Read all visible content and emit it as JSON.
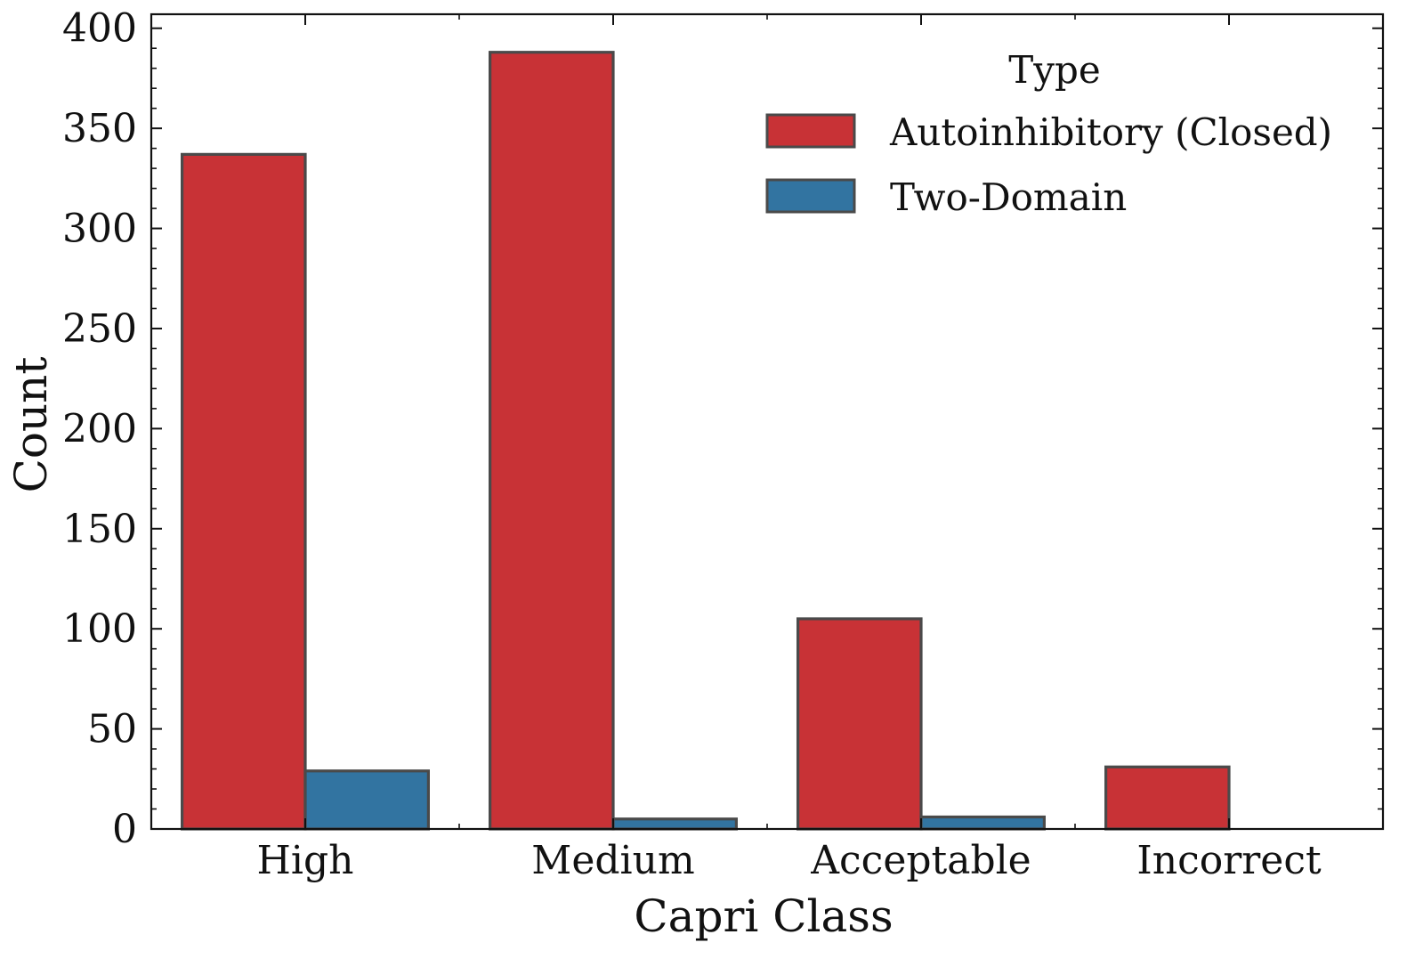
{
  "chart_data": {
    "type": "bar",
    "title": "",
    "xlabel": "Capri Class",
    "ylabel": "Count",
    "categories": [
      "High",
      "Medium",
      "Acceptable",
      "Incorrect"
    ],
    "series": [
      {
        "name": "Autoinhibitory (Closed)",
        "color": "#c83236",
        "values": [
          337,
          388,
          105,
          31
        ]
      },
      {
        "name": "Two-Domain",
        "color": "#3274a1",
        "values": [
          29,
          5,
          6,
          0
        ]
      }
    ],
    "ylim": [
      0,
      407
    ],
    "yticks": [
      0,
      50,
      100,
      150,
      200,
      250,
      300,
      350,
      400
    ],
    "ytick_labels": [
      "0",
      "50",
      "100",
      "150",
      "200",
      "250",
      "300",
      "350",
      "400"
    ],
    "legend": {
      "title": "Type",
      "position": "top-right"
    },
    "bar_edge_color": "#4a4a4a",
    "grid": false
  }
}
